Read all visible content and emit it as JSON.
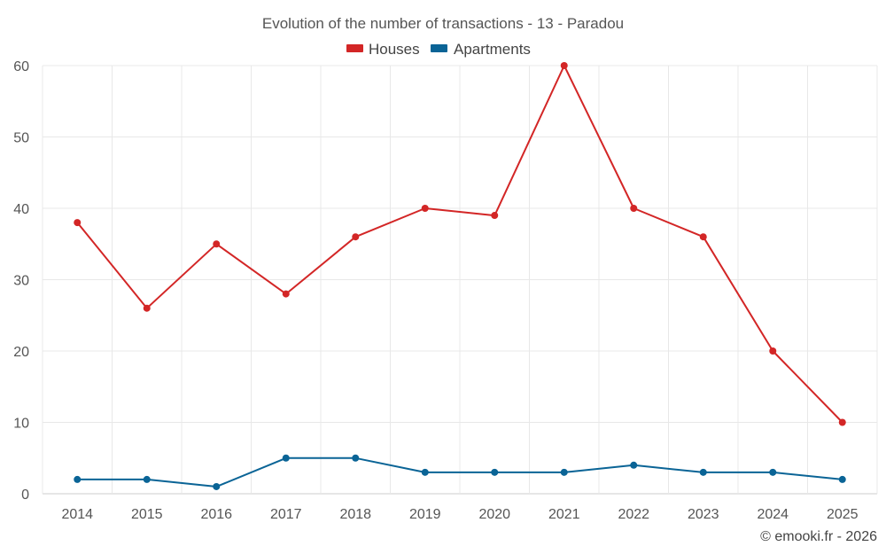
{
  "chart_data": {
    "type": "line",
    "title": "Evolution of the number of transactions - 13 - Paradou",
    "categories": [
      "2014",
      "2015",
      "2016",
      "2017",
      "2018",
      "2019",
      "2020",
      "2021",
      "2022",
      "2023",
      "2024",
      "2025"
    ],
    "series": [
      {
        "name": "Houses",
        "color": "#d32626",
        "values": [
          38,
          26,
          35,
          28,
          36,
          40,
          39,
          60,
          40,
          36,
          20,
          10
        ]
      },
      {
        "name": "Apartments",
        "color": "#0a6496",
        "values": [
          2,
          2,
          1,
          5,
          5,
          3,
          3,
          3,
          4,
          3,
          3,
          2
        ]
      }
    ],
    "ylim": [
      0,
      60
    ],
    "yticks": [
      0,
      10,
      20,
      30,
      40,
      50,
      60
    ],
    "xlabel": "",
    "ylabel": "",
    "grid": true,
    "legend_position": "top-center"
  },
  "footer": "© emooki.fr - 2026"
}
